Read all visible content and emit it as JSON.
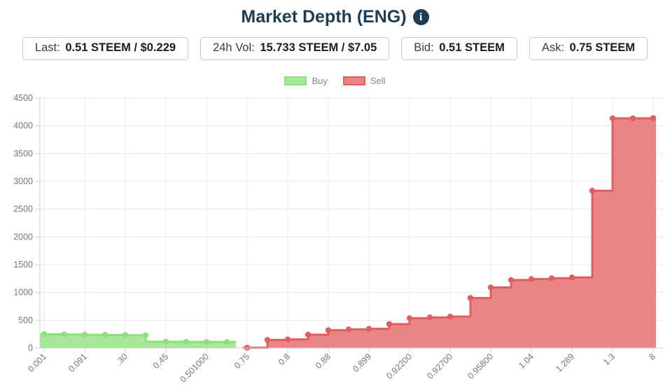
{
  "header": {
    "title": "Market Depth (ENG)",
    "info_icon": "i"
  },
  "stats": [
    {
      "label": "Last:",
      "value": "0.51 STEEM / $0.229"
    },
    {
      "label": "24h Vol:",
      "value": "15.733 STEEM / $7.05"
    },
    {
      "label": "Bid:",
      "value": "0.51 STEEM"
    },
    {
      "label": "Ask:",
      "value": "0.75 STEEM"
    }
  ],
  "legend": [
    {
      "label": "Buy",
      "fill": "#a9e79b",
      "border": "#8ce07d"
    },
    {
      "label": "Sell",
      "fill": "#e98585",
      "border": "#e25d5d"
    }
  ],
  "chart_data": {
    "type": "area",
    "subtype": "market-depth-stepped",
    "title": "Market Depth (ENG)",
    "xlabel": "",
    "ylabel": "",
    "ylim": [
      0,
      4500
    ],
    "y_ticks": [
      0,
      500,
      1000,
      1500,
      2000,
      2500,
      3000,
      3500,
      4000,
      4500
    ],
    "n_points": 31,
    "x_tick_every": 2,
    "x_tick_labels": [
      "0.001",
      "0.091",
      ".30",
      "0.45",
      "0.501000",
      "0.75",
      "0.8",
      "0.88",
      "0.899",
      "0.92200",
      "0.92700",
      "0.95800",
      "1.04",
      "1.289",
      "1.3",
      "8"
    ],
    "grid": true,
    "legend_position": "top",
    "colors": {
      "grid": "#e8e8e8",
      "axis": "#cfcfcf",
      "tick_text": "#777777"
    },
    "series": [
      {
        "name": "Buy",
        "step": "before",
        "start_index": 0,
        "fill": "#a9e79b",
        "line": "#8ce07d",
        "values": [
          250,
          246,
          242,
          238,
          234,
          230,
          115,
          112,
          110,
          108
        ]
      },
      {
        "name": "Sell",
        "step": "after",
        "start_index": 10,
        "fill": "#e98585",
        "line": "#e25d5d",
        "values": [
          5,
          145,
          155,
          240,
          320,
          335,
          345,
          430,
          535,
          550,
          565,
          900,
          1090,
          1225,
          1240,
          1255,
          1270,
          2830,
          4135,
          4135,
          4140
        ]
      }
    ]
  }
}
